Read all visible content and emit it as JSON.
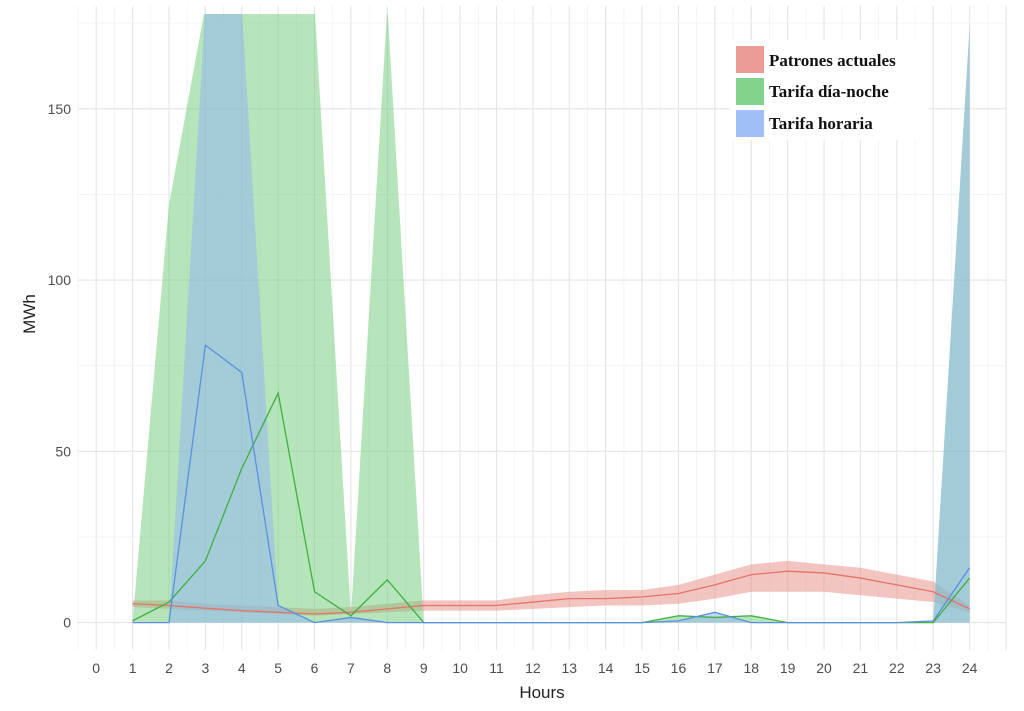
{
  "chart_data": {
    "type": "line",
    "xlabel": "Hours",
    "ylabel": "MWh",
    "x_ticks": [
      0,
      1,
      2,
      3,
      4,
      5,
      6,
      7,
      8,
      9,
      10,
      11,
      12,
      13,
      14,
      15,
      16,
      17,
      18,
      19,
      20,
      21,
      22,
      23,
      24
    ],
    "y_ticks": [
      0,
      50,
      100,
      150
    ],
    "xlim": [
      -0.5,
      25
    ],
    "ylim": [
      -8,
      180
    ],
    "grid": true,
    "legend_position": "top-right",
    "x": [
      1,
      2,
      3,
      4,
      5,
      6,
      7,
      8,
      9,
      10,
      11,
      12,
      13,
      14,
      15,
      16,
      17,
      18,
      19,
      20,
      21,
      22,
      23,
      24
    ],
    "series": [
      {
        "name": "Patrones actuales",
        "color": "#F8766D",
        "fill": "#E88B84",
        "line": "#E57368",
        "values": [
          5.5,
          5,
          4.2,
          3.5,
          3,
          2.5,
          3,
          4,
          5,
          5,
          5,
          6,
          7,
          7,
          7.5,
          8.5,
          11,
          14,
          15,
          14.5,
          13,
          11,
          9,
          4
        ],
        "lower": [
          4.5,
          4,
          3.5,
          3,
          2.5,
          2,
          2.5,
          3,
          3.5,
          3.5,
          3.5,
          4,
          4.5,
          5,
          5,
          5.5,
          7,
          9,
          9,
          9,
          8,
          7,
          6,
          3
        ],
        "upper": [
          6.5,
          6.5,
          5.5,
          5,
          4.5,
          4,
          4.5,
          5.5,
          6.5,
          6.5,
          6.5,
          8,
          9,
          9.5,
          9.5,
          11,
          14,
          17,
          18,
          17,
          16,
          14,
          12,
          5
        ]
      },
      {
        "name": "Tarifa día-noche",
        "color": "#00BA38",
        "fill": "#6FCB78",
        "line": "#3FAF3F",
        "values": [
          0.5,
          6,
          18,
          45,
          67,
          9,
          2,
          12.5,
          0,
          0,
          0,
          0,
          0,
          0,
          0,
          2,
          1.5,
          2,
          0,
          0,
          0,
          0,
          0,
          13
        ],
        "lower": [
          0,
          0,
          0,
          0,
          0,
          0,
          0,
          0,
          0,
          0,
          0,
          0,
          0,
          0,
          0,
          0,
          0,
          0,
          0,
          0,
          0,
          0,
          0,
          0
        ],
        "upper": [
          0.5,
          122,
          180,
          180,
          180,
          180,
          2,
          180,
          0,
          0,
          0,
          0,
          0,
          0,
          0,
          2,
          1.5,
          2,
          0,
          0,
          0,
          0,
          0,
          174
        ]
      },
      {
        "name": "Tarifa horaria",
        "color": "#619CFF",
        "fill": "#8FB4F5",
        "line": "#5B8FE0",
        "values": [
          0,
          0,
          81,
          73,
          5,
          0,
          1.5,
          0,
          0,
          0,
          0,
          0,
          0,
          0,
          0,
          0.5,
          3,
          0,
          0,
          0,
          0,
          0,
          0.5,
          16
        ],
        "lower": [
          0,
          0,
          0,
          0,
          0,
          0,
          0,
          0,
          0,
          0,
          0,
          0,
          0,
          0,
          0,
          0,
          0,
          0,
          0,
          0,
          0,
          0,
          0,
          0
        ],
        "upper": [
          0,
          0,
          180,
          180,
          5,
          0,
          1.5,
          0,
          0,
          0,
          0,
          0,
          0,
          0,
          0,
          0.5,
          3,
          0,
          0,
          0,
          0,
          0,
          0.5,
          174
        ]
      }
    ]
  }
}
